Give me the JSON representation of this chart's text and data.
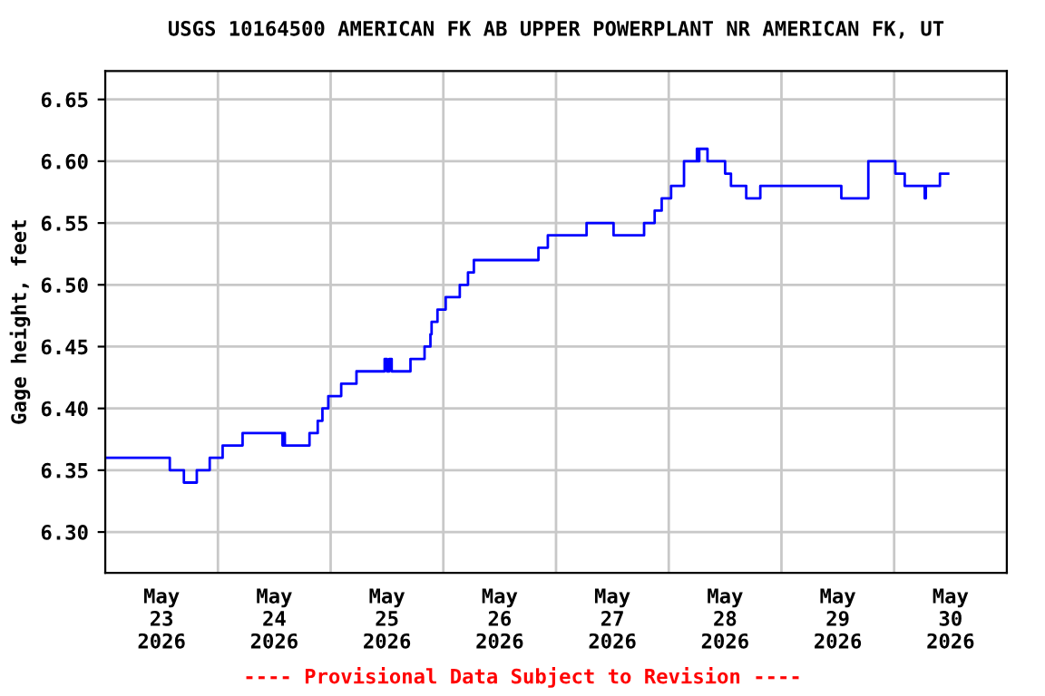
{
  "chart_data": {
    "type": "step",
    "title": "USGS 10164500 AMERICAN FK AB UPPER POWERPLANT NR AMERICAN FK, UT",
    "ylabel": "Gage height, feet",
    "annotations": [
      "---- Provisional Data Subject to Revision ----"
    ],
    "xlim": [
      "2026-05-23T00:00",
      "2026-05-31T00:00"
    ],
    "xticks": [
      {
        "value": "2026-05-23T00:00",
        "label": null
      },
      {
        "value": "2026-05-24T00:00",
        "label": null
      },
      {
        "value": "2026-05-25T00:00",
        "label": null
      },
      {
        "value": "2026-05-26T00:00",
        "label": null
      },
      {
        "value": "2026-05-27T00:00",
        "label": null
      },
      {
        "value": "2026-05-28T00:00",
        "label": null
      },
      {
        "value": "2026-05-29T00:00",
        "label": null
      },
      {
        "value": "2026-05-30T00:00",
        "label": null
      },
      {
        "value": "2026-05-31T00:00",
        "label": null
      },
      {
        "value": "2026-05-23T12:00",
        "label": "May\n23\n2026"
      },
      {
        "value": "2026-05-24T12:00",
        "label": "May\n24\n2026"
      },
      {
        "value": "2026-05-25T12:00",
        "label": "May\n25\n2026"
      },
      {
        "value": "2026-05-26T12:00",
        "label": "May\n26\n2026"
      },
      {
        "value": "2026-05-27T12:00",
        "label": "May\n27\n2026"
      },
      {
        "value": "2026-05-28T12:00",
        "label": "May\n28\n2026"
      },
      {
        "value": "2026-05-29T12:00",
        "label": "May\n29\n2026"
      },
      {
        "value": "2026-05-30T12:00",
        "label": "May\n30\n2026"
      }
    ],
    "ylim": [
      6.267,
      6.673
    ],
    "yticks": [
      {
        "value": 6.3,
        "label": "6.30"
      },
      6.35,
      {
        "value": 6.4,
        "label": "6.40"
      },
      6.45,
      {
        "value": 6.5,
        "label": "6.50"
      },
      6.55,
      {
        "value": 6.6,
        "label": "6.60"
      },
      6.65
    ],
    "grid": true,
    "legend": false,
    "series": [
      {
        "color": "#0000ff",
        "x": [
          "2026-05-23T00:00",
          "2026-05-23T13:45",
          "2026-05-23T16:45",
          "2026-05-23T19:30",
          "2026-05-23T22:15",
          "2026-05-24T01:00",
          "2026-05-24T05:15",
          "2026-05-24T13:45",
          "2026-05-24T14:00",
          "2026-05-24T14:15",
          "2026-05-24T19:30",
          "2026-05-24T21:15",
          "2026-05-24T22:15",
          "2026-05-24T23:30",
          "2026-05-25T02:15",
          "2026-05-25T05:30",
          "2026-05-25T11:30",
          "2026-05-25T12:00",
          "2026-05-25T12:30",
          "2026-05-25T13:00",
          "2026-05-25T17:00",
          "2026-05-25T20:00",
          "2026-05-25T21:15",
          "2026-05-25T21:30",
          "2026-05-25T22:45",
          "2026-05-26T00:30",
          "2026-05-26T03:30",
          "2026-05-26T05:15",
          "2026-05-26T06:30",
          "2026-05-26T20:15",
          "2026-05-26T22:15",
          "2026-05-27T06:30",
          "2026-05-27T12:15",
          "2026-05-27T18:45",
          "2026-05-27T21:00",
          "2026-05-27T22:30",
          "2026-05-28T00:30",
          "2026-05-28T03:15",
          "2026-05-28T06:00",
          "2026-05-28T06:15",
          "2026-05-28T06:30",
          "2026-05-28T08:15",
          "2026-05-28T12:00",
          "2026-05-28T13:15",
          "2026-05-28T16:30",
          "2026-05-28T19:30",
          "2026-05-29T12:45",
          "2026-05-29T18:30",
          "2026-05-30T00:15",
          "2026-05-30T02:15",
          "2026-05-30T06:30",
          "2026-05-30T06:45",
          "2026-05-30T09:45",
          "2026-05-30T11:30"
        ],
        "values": [
          6.36,
          6.35,
          6.34,
          6.35,
          6.36,
          6.37,
          6.38,
          6.37,
          6.38,
          6.37,
          6.38,
          6.39,
          6.4,
          6.41,
          6.42,
          6.43,
          6.44,
          6.43,
          6.44,
          6.43,
          6.44,
          6.45,
          6.46,
          6.47,
          6.48,
          6.49,
          6.5,
          6.51,
          6.52,
          6.53,
          6.54,
          6.55,
          6.54,
          6.55,
          6.56,
          6.57,
          6.58,
          6.6,
          6.61,
          6.6,
          6.61,
          6.6,
          6.59,
          6.58,
          6.57,
          6.58,
          6.57,
          6.6,
          6.59,
          6.58,
          6.57,
          6.58,
          6.59,
          6.59
        ]
      }
    ]
  }
}
